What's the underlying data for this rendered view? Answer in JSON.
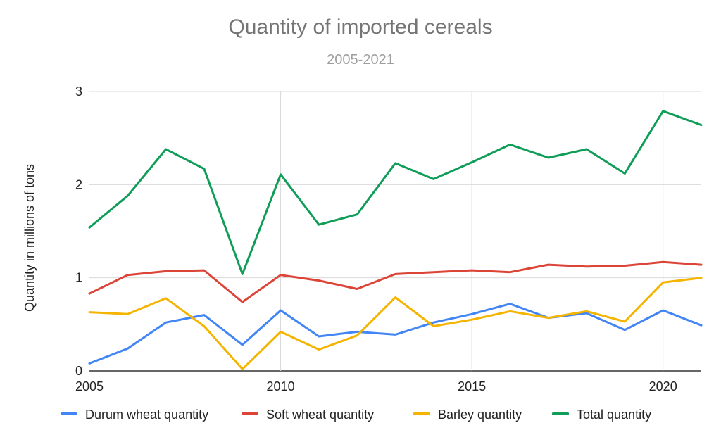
{
  "chart_data": {
    "type": "line",
    "title": "Quantity of imported cereals",
    "subtitle": "2005-2021",
    "xlabel": "",
    "ylabel": "Quantity in millions of tons",
    "x": [
      2005,
      2006,
      2007,
      2008,
      2009,
      2010,
      2011,
      2012,
      2013,
      2014,
      2015,
      2016,
      2017,
      2018,
      2019,
      2020,
      2021
    ],
    "xlim": [
      2005,
      2021
    ],
    "ylim": [
      0,
      3
    ],
    "x_ticks": [
      2005,
      2010,
      2015,
      2020
    ],
    "y_ticks": [
      0,
      1,
      2,
      3
    ],
    "grid": true,
    "legend_position": "bottom",
    "series": [
      {
        "name": "Durum wheat quantity",
        "color": "#4285f4",
        "values": [
          0.08,
          0.24,
          0.52,
          0.6,
          0.28,
          0.65,
          0.37,
          0.42,
          0.39,
          0.52,
          0.61,
          0.72,
          0.57,
          0.62,
          0.44,
          0.65,
          0.49
        ]
      },
      {
        "name": "Soft wheat quantity",
        "color": "#db4437",
        "values": [
          0.83,
          1.03,
          1.07,
          1.08,
          0.74,
          1.03,
          0.97,
          0.88,
          1.04,
          1.06,
          1.08,
          1.06,
          1.14,
          1.12,
          1.13,
          1.17,
          1.14
        ]
      },
      {
        "name": "Barley quantity",
        "color": "#f4b400",
        "values": [
          0.63,
          0.61,
          0.78,
          0.48,
          0.02,
          0.42,
          0.23,
          0.38,
          0.79,
          0.48,
          0.55,
          0.64,
          0.57,
          0.64,
          0.53,
          0.95,
          1.0
        ]
      },
      {
        "name": "Total quantity",
        "color": "#0f9d58",
        "values": [
          1.54,
          1.88,
          2.38,
          2.17,
          1.04,
          2.11,
          1.57,
          1.68,
          2.23,
          2.06,
          2.24,
          2.43,
          2.29,
          2.38,
          2.12,
          2.79,
          2.64
        ]
      }
    ]
  }
}
